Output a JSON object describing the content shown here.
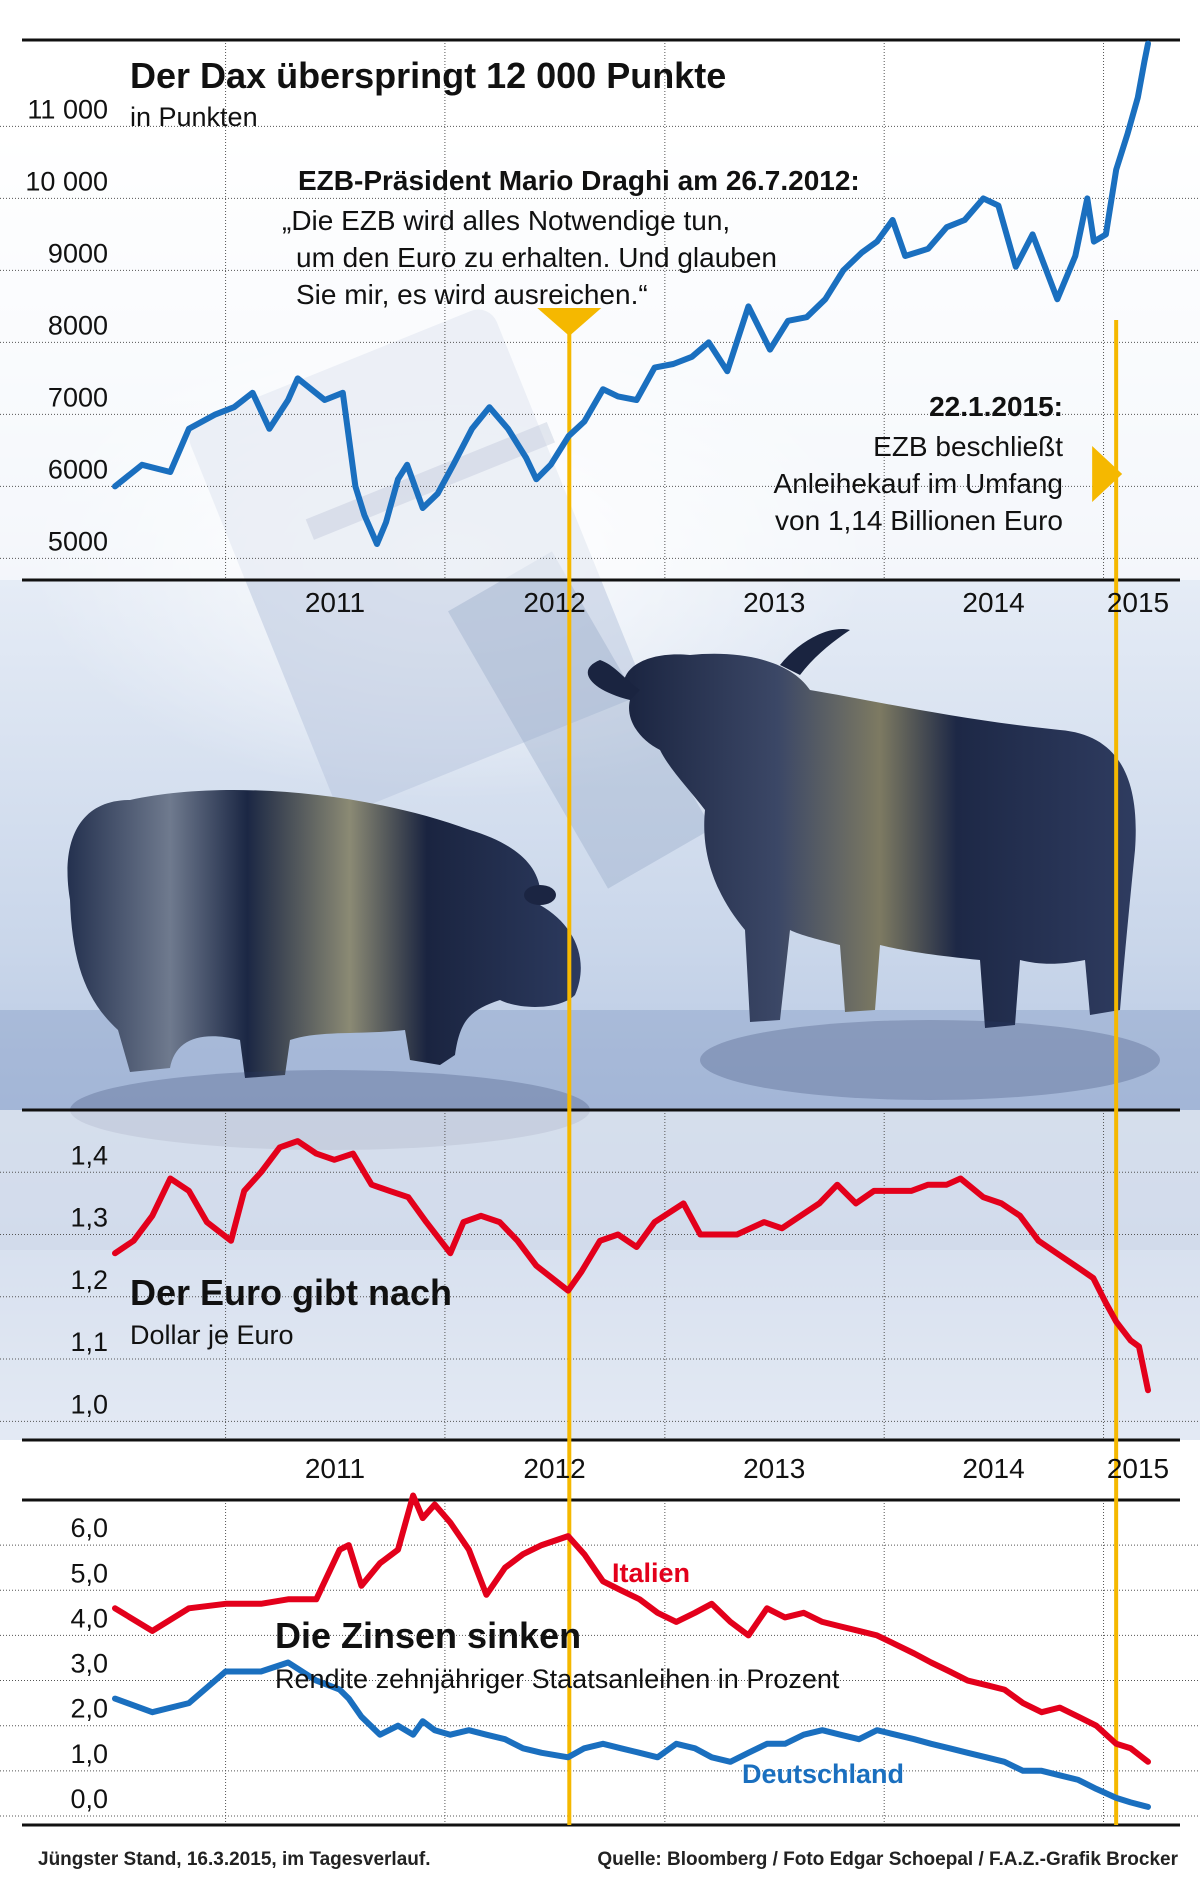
{
  "dates": {
    "start": "2010-07-01",
    "end": "2015-03-16",
    "year_labels": [
      "2011",
      "2012",
      "2013",
      "2014",
      "2015"
    ]
  },
  "colors": {
    "dax": "#1a6fbf",
    "italy": "#e3001b",
    "germany": "#1a6fbf",
    "marker": "#f5b800",
    "frame": "#111111"
  },
  "annotations": {
    "draghi_title": "EZB-Präsident Mario Draghi am 26.7.2012:",
    "draghi_quote": [
      "„Die EZB wird alles Notwendige tun,",
      "um den Euro zu erhalten. Und glauben",
      "Sie mir, es wird ausreichen.“"
    ],
    "ecb_date": "22.1.2015:",
    "ecb_text": [
      "EZB beschließt",
      "Anleihekauf im Umfang",
      "von 1,14 Billionen Euro"
    ]
  },
  "footer": {
    "left": "Jüngster Stand, 16.3.2015, im Tagesverlauf.",
    "right": "Quelle: Bloomberg / Foto Edgar Schoepal / F.A.Z.-Grafik Brocker"
  },
  "chart_data": [
    {
      "type": "line",
      "title": "Der Dax überspringt 12 000 Punkte",
      "subtitle": "in Punkten",
      "ylim": [
        4700,
        12200
      ],
      "yticks": [
        5000,
        6000,
        7000,
        8000,
        9000,
        10000,
        11000
      ],
      "ytick_labels": [
        "5000",
        "6000",
        "7000",
        "8000",
        "9000",
        "10 000",
        "11 000"
      ],
      "x_ticks": [
        "2011",
        "2012",
        "2013",
        "2014",
        "2015"
      ],
      "grid": true,
      "series": [
        {
          "x": [
            "2010-07-01",
            "2010-08-15",
            "2010-10-01",
            "2010-11-01",
            "2010-12-15",
            "2011-01-15",
            "2011-02-15",
            "2011-03-15",
            "2011-04-15",
            "2011-05-01",
            "2011-06-15",
            "2011-07-15",
            "2011-08-05",
            "2011-08-20",
            "2011-09-10",
            "2011-09-25",
            "2011-10-15",
            "2011-10-30",
            "2011-11-25",
            "2011-12-20",
            "2012-01-15",
            "2012-02-15",
            "2012-03-15",
            "2012-04-15",
            "2012-05-15",
            "2012-06-01",
            "2012-06-25",
            "2012-07-25",
            "2012-08-20",
            "2012-09-20",
            "2012-10-15",
            "2012-11-15",
            "2012-12-15",
            "2013-01-15",
            "2013-02-15",
            "2013-03-15",
            "2013-04-15",
            "2013-05-20",
            "2013-06-25",
            "2013-07-25",
            "2013-08-25",
            "2013-09-25",
            "2013-10-25",
            "2013-11-25",
            "2013-12-20",
            "2014-01-15",
            "2014-02-05",
            "2014-03-15",
            "2014-04-15",
            "2014-05-15",
            "2014-06-15",
            "2014-07-10",
            "2014-08-08",
            "2014-09-05",
            "2014-10-16",
            "2014-11-15",
            "2014-12-05",
            "2014-12-16",
            "2015-01-05",
            "2015-01-22",
            "2015-02-10",
            "2015-02-27",
            "2015-03-10",
            "2015-03-16"
          ],
          "values": [
            6000,
            6300,
            6200,
            6800,
            7000,
            7100,
            7300,
            6800,
            7200,
            7500,
            7200,
            7300,
            6000,
            5600,
            5200,
            5500,
            6100,
            6300,
            5700,
            5900,
            6300,
            6800,
            7100,
            6800,
            6400,
            6100,
            6300,
            6700,
            6900,
            7350,
            7250,
            7200,
            7650,
            7700,
            7800,
            8000,
            7600,
            8500,
            7900,
            8300,
            8350,
            8600,
            9000,
            9250,
            9400,
            9700,
            9200,
            9300,
            9600,
            9700,
            10000,
            9900,
            9050,
            9500,
            8600,
            9200,
            10000,
            9400,
            9500,
            10400,
            10900,
            11400,
            11900,
            12150
          ]
        }
      ]
    },
    {
      "type": "line",
      "title": "Der Euro gibt nach",
      "subtitle": "Dollar je Euro",
      "ylim": [
        0.97,
        1.5
      ],
      "yticks": [
        1.0,
        1.1,
        1.2,
        1.3,
        1.4
      ],
      "ytick_labels": [
        "1,0",
        "1,1",
        "1,2",
        "1,3",
        "1,4"
      ],
      "x_ticks": [
        "2011",
        "2012",
        "2013",
        "2014",
        "2015"
      ],
      "grid": true,
      "series": [
        {
          "x": [
            "2010-07-01",
            "2010-08-01",
            "2010-09-01",
            "2010-10-01",
            "2010-11-01",
            "2010-12-01",
            "2011-01-10",
            "2011-02-01",
            "2011-03-01",
            "2011-04-01",
            "2011-05-01",
            "2011-06-01",
            "2011-07-01",
            "2011-08-01",
            "2011-09-01",
            "2011-10-01",
            "2011-11-01",
            "2011-12-01",
            "2012-01-10",
            "2012-02-01",
            "2012-03-01",
            "2012-04-01",
            "2012-05-01",
            "2012-06-01",
            "2012-07-24",
            "2012-08-15",
            "2012-09-15",
            "2012-10-15",
            "2012-11-15",
            "2012-12-15",
            "2013-02-01",
            "2013-03-01",
            "2013-04-01",
            "2013-05-01",
            "2013-06-15",
            "2013-07-15",
            "2013-08-15",
            "2013-09-15",
            "2013-10-15",
            "2013-11-15",
            "2013-12-15",
            "2014-01-15",
            "2014-02-15",
            "2014-03-15",
            "2014-04-15",
            "2014-05-08",
            "2014-06-15",
            "2014-07-15",
            "2014-08-15",
            "2014-09-15",
            "2014-10-15",
            "2014-11-15",
            "2014-12-15",
            "2015-01-05",
            "2015-01-22",
            "2015-02-15",
            "2015-03-01",
            "2015-03-16"
          ],
          "values": [
            1.27,
            1.29,
            1.33,
            1.39,
            1.37,
            1.32,
            1.29,
            1.37,
            1.4,
            1.44,
            1.45,
            1.43,
            1.42,
            1.43,
            1.38,
            1.37,
            1.36,
            1.32,
            1.27,
            1.32,
            1.33,
            1.32,
            1.29,
            1.25,
            1.21,
            1.24,
            1.29,
            1.3,
            1.28,
            1.32,
            1.35,
            1.3,
            1.3,
            1.3,
            1.32,
            1.31,
            1.33,
            1.35,
            1.38,
            1.35,
            1.37,
            1.37,
            1.37,
            1.38,
            1.38,
            1.39,
            1.36,
            1.35,
            1.33,
            1.29,
            1.27,
            1.25,
            1.23,
            1.19,
            1.16,
            1.13,
            1.12,
            1.05
          ]
        }
      ]
    },
    {
      "type": "line",
      "title": "Die Zinsen sinken",
      "subtitle": "Rendite zehnjähriger Staatsanleihen in Prozent",
      "ylim": [
        -0.2,
        7.0
      ],
      "yticks": [
        0.0,
        1.0,
        2.0,
        3.0,
        4.0,
        5.0,
        6.0
      ],
      "ytick_labels": [
        "0,0",
        "1,0",
        "2,0",
        "3,0",
        "4,0",
        "5,0",
        "6,0"
      ],
      "grid": true,
      "series": [
        {
          "name": "Italien",
          "x": [
            "2010-07-01",
            "2010-09-01",
            "2010-11-01",
            "2011-01-01",
            "2011-03-01",
            "2011-04-15",
            "2011-06-01",
            "2011-07-10",
            "2011-07-25",
            "2011-08-15",
            "2011-09-15",
            "2011-10-15",
            "2011-11-09",
            "2011-11-25",
            "2011-12-15",
            "2012-01-10",
            "2012-02-10",
            "2012-03-10",
            "2012-04-10",
            "2012-05-10",
            "2012-06-10",
            "2012-07-24",
            "2012-08-20",
            "2012-09-20",
            "2012-10-20",
            "2012-11-20",
            "2012-12-20",
            "2013-01-20",
            "2013-02-20",
            "2013-03-20",
            "2013-04-20",
            "2013-05-20",
            "2013-06-20",
            "2013-07-20",
            "2013-08-20",
            "2013-09-20",
            "2013-10-20",
            "2013-11-20",
            "2013-12-20",
            "2014-01-20",
            "2014-02-20",
            "2014-03-20",
            "2014-04-20",
            "2014-05-20",
            "2014-06-20",
            "2014-07-20",
            "2014-08-20",
            "2014-09-20",
            "2014-10-20",
            "2014-11-20",
            "2014-12-20",
            "2015-01-22",
            "2015-02-15",
            "2015-03-16"
          ],
          "values": [
            4.6,
            4.1,
            4.6,
            4.7,
            4.7,
            4.8,
            4.8,
            5.9,
            6.0,
            5.1,
            5.6,
            5.9,
            7.1,
            6.6,
            6.9,
            6.5,
            5.9,
            4.9,
            5.5,
            5.8,
            6.0,
            6.2,
            5.8,
            5.2,
            5.0,
            4.8,
            4.5,
            4.3,
            4.5,
            4.7,
            4.3,
            4.0,
            4.6,
            4.4,
            4.5,
            4.3,
            4.2,
            4.1,
            4.0,
            3.8,
            3.6,
            3.4,
            3.2,
            3.0,
            2.9,
            2.8,
            2.5,
            2.3,
            2.4,
            2.2,
            2.0,
            1.6,
            1.5,
            1.2
          ]
        },
        {
          "name": "Deutschland",
          "x": [
            "2010-07-01",
            "2010-09-01",
            "2010-11-01",
            "2011-01-01",
            "2011-03-01",
            "2011-04-15",
            "2011-06-01",
            "2011-07-10",
            "2011-07-25",
            "2011-08-15",
            "2011-09-15",
            "2011-10-15",
            "2011-11-09",
            "2011-11-25",
            "2011-12-15",
            "2012-01-10",
            "2012-02-10",
            "2012-03-10",
            "2012-04-10",
            "2012-05-10",
            "2012-06-10",
            "2012-07-24",
            "2012-08-20",
            "2012-09-20",
            "2012-10-20",
            "2012-11-20",
            "2012-12-20",
            "2013-01-20",
            "2013-02-20",
            "2013-03-20",
            "2013-04-20",
            "2013-05-20",
            "2013-06-20",
            "2013-07-20",
            "2013-08-20",
            "2013-09-20",
            "2013-10-20",
            "2013-11-20",
            "2013-12-20",
            "2014-01-20",
            "2014-02-20",
            "2014-03-20",
            "2014-04-20",
            "2014-05-20",
            "2014-06-20",
            "2014-07-20",
            "2014-08-20",
            "2014-09-20",
            "2014-10-20",
            "2014-11-20",
            "2014-12-20",
            "2015-01-22",
            "2015-02-15",
            "2015-03-16"
          ],
          "values": [
            2.6,
            2.3,
            2.5,
            3.2,
            3.2,
            3.4,
            3.0,
            2.8,
            2.6,
            2.2,
            1.8,
            2.0,
            1.8,
            2.1,
            1.9,
            1.8,
            1.9,
            1.8,
            1.7,
            1.5,
            1.4,
            1.3,
            1.5,
            1.6,
            1.5,
            1.4,
            1.3,
            1.6,
            1.5,
            1.3,
            1.2,
            1.4,
            1.6,
            1.6,
            1.8,
            1.9,
            1.8,
            1.7,
            1.9,
            1.8,
            1.7,
            1.6,
            1.5,
            1.4,
            1.3,
            1.2,
            1.0,
            1.0,
            0.9,
            0.8,
            0.6,
            0.4,
            0.3,
            0.2
          ]
        }
      ]
    }
  ]
}
